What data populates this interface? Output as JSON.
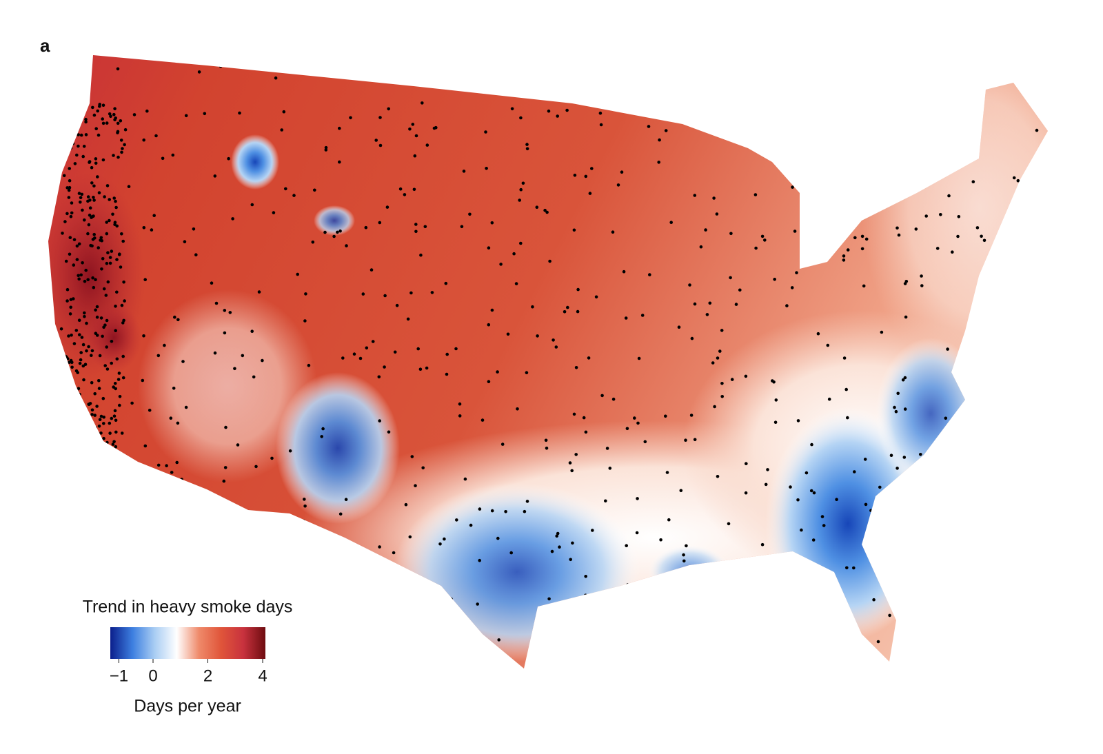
{
  "panel_label": "a",
  "legend": {
    "title": "Trend in heavy smoke days",
    "axis_label": "Days per year",
    "lim": [
      -1.25,
      4.1
    ],
    "center": 0,
    "ticks": [
      {
        "value": -1,
        "label": "−1"
      },
      0,
      2,
      4
    ],
    "colors": [
      "#0b1f8c",
      "#3d7fe0",
      "#a9cdf3",
      "#ffffff",
      "#ef8a6a",
      "#e0553a",
      "#c8323e",
      "#6e0c10"
    ]
  }
}
